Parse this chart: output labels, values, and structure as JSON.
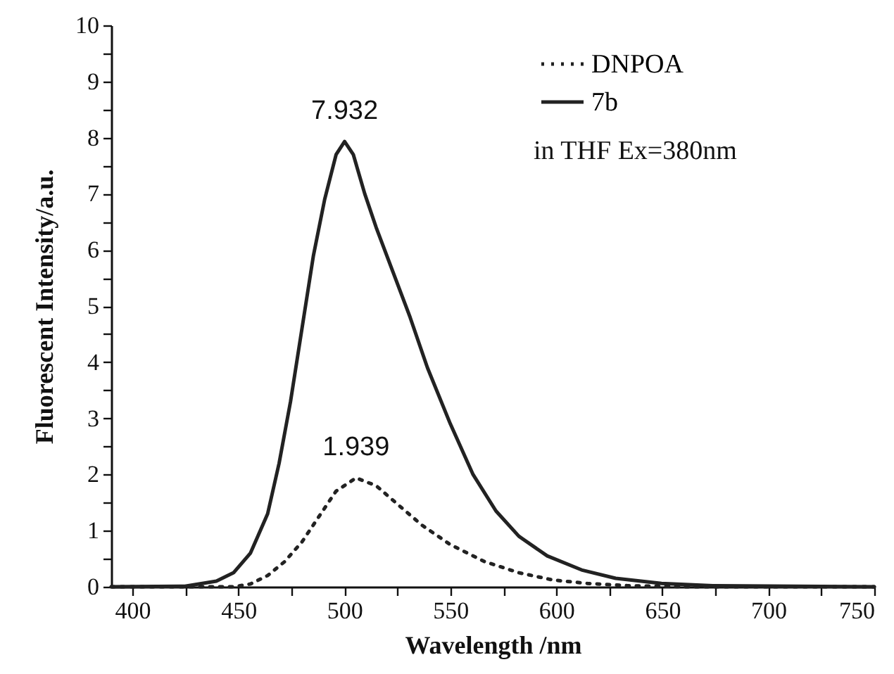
{
  "chart_data": {
    "type": "line",
    "xlabel": "Wavelength /nm",
    "ylabel": "Fluorescent Intensity/a.u.",
    "xlim": [
      390,
      750
    ],
    "xticks": [
      400,
      {
        "value": 425,
        "label": null
      },
      450,
      {
        "value": 475,
        "label": null
      },
      500,
      {
        "value": 525,
        "label": null
      },
      550,
      {
        "value": 575,
        "label": null
      },
      600,
      {
        "value": 625,
        "label": null
      },
      650,
      {
        "value": 675,
        "label": null
      },
      700,
      {
        "value": 725,
        "label": null
      },
      750
    ],
    "ylim": [
      0,
      10
    ],
    "yticks": [
      0,
      {
        "value": 0.5,
        "label": null
      },
      1,
      {
        "value": 1.5,
        "label": null
      },
      2,
      {
        "value": 2.5,
        "label": null
      },
      3,
      {
        "value": 3.5,
        "label": null
      },
      4,
      {
        "value": 4.5,
        "label": null
      },
      5,
      {
        "value": 5.5,
        "label": null
      },
      6,
      {
        "value": 6.5,
        "label": null
      },
      7,
      {
        "value": 7.5,
        "label": null
      },
      8,
      {
        "value": 8.5,
        "label": null
      },
      9,
      {
        "value": 9.5,
        "label": null
      },
      10
    ],
    "legend": "top right",
    "series": [
      {
        "name": "DNPOA",
        "color": "#222222",
        "line_style": "dotted",
        "x": [
          390,
          447.7,
          455.7,
          463.8,
          471.9,
          480,
          488,
          496,
          505.5,
          515,
          525.7,
          536.5,
          550,
          566,
          582.3,
          598.4,
          614.6,
          633.4,
          660.4,
          750
        ],
        "values": [
          0,
          0,
          0.05,
          0.2,
          0.45,
          0.8,
          1.25,
          1.7,
          1.939,
          1.8,
          1.45,
          1.1,
          0.75,
          0.45,
          0.25,
          0.12,
          0.06,
          0.02,
          0,
          0
        ]
      },
      {
        "name": "7b",
        "color": "#222222",
        "line_style": "solid",
        "x": [
          390,
          424.8,
          439.6,
          447.7,
          455.7,
          463.8,
          469.2,
          474.6,
          480,
          485.4,
          490.7,
          496.1,
          500.1,
          504.2,
          509.6,
          515,
          523,
          531,
          539.2,
          550,
          560.7,
          571.5,
          582.3,
          595.7,
          611.9,
          628,
          649.6,
          673.8,
          750
        ],
        "values": [
          0,
          0.01,
          0.1,
          0.25,
          0.6,
          1.3,
          2.2,
          3.3,
          4.6,
          5.9,
          6.9,
          7.7,
          7.932,
          7.7,
          7,
          6.4,
          5.6,
          4.8,
          3.9,
          2.9,
          2,
          1.35,
          0.9,
          0.55,
          0.3,
          0.15,
          0.06,
          0.02,
          0
        ]
      }
    ],
    "annotations": [
      {
        "text": "7.932",
        "x": 500.1,
        "y": 7.932
      },
      {
        "text": "1.939",
        "x": 505.5,
        "y": 1.939
      },
      "in THF Ex=380nm"
    ]
  }
}
